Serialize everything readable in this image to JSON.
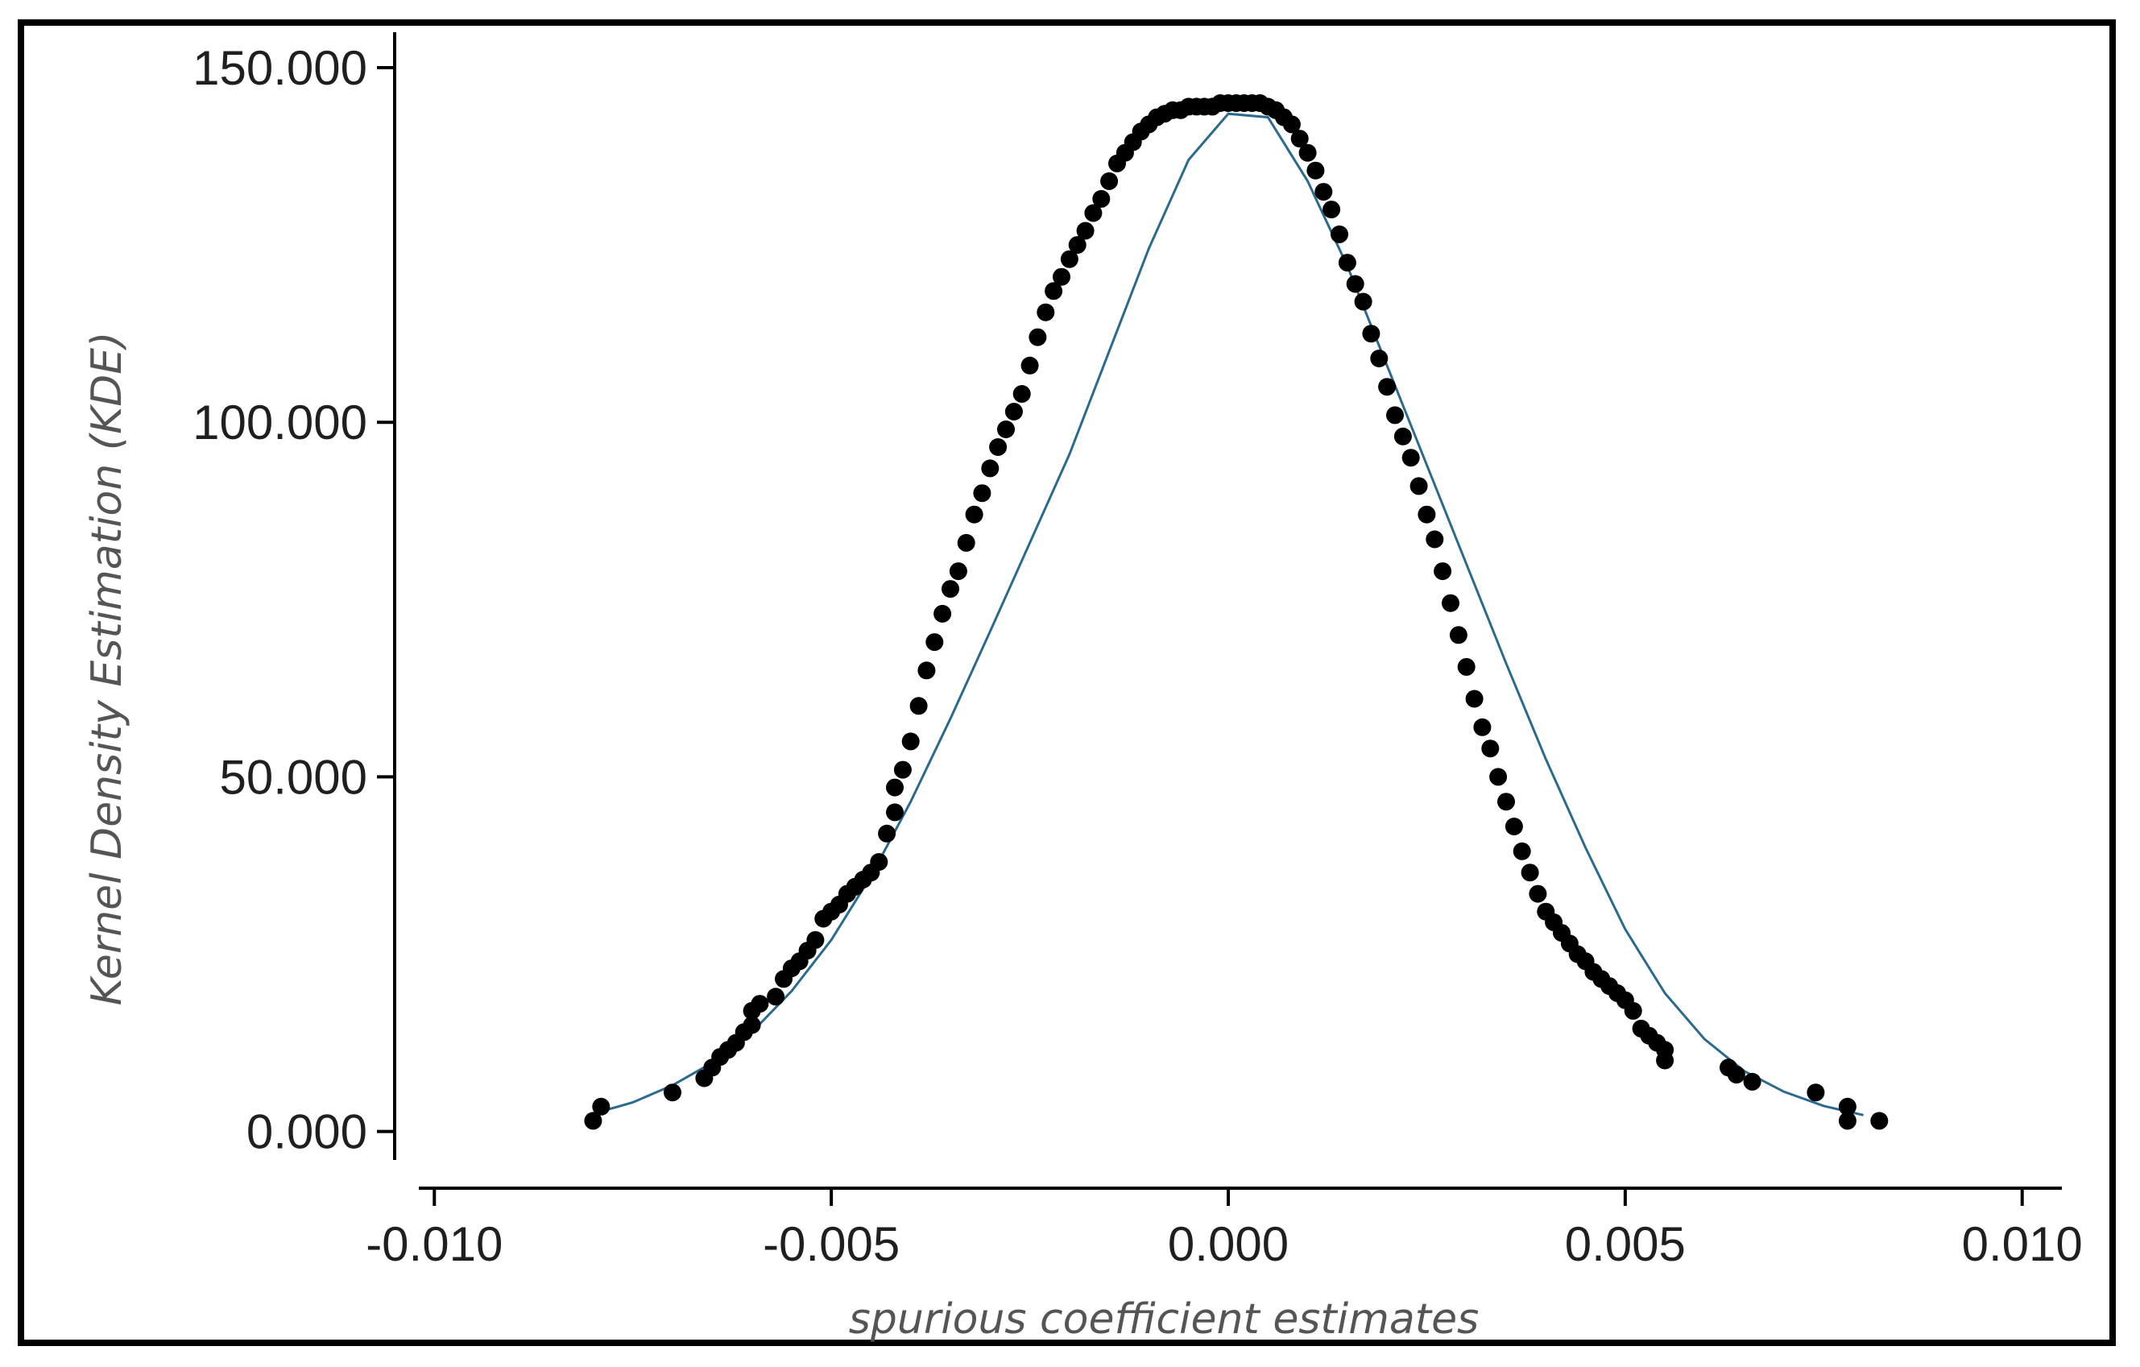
{
  "chart_data": {
    "type": "scatter",
    "xlabel": "spurious coefficient estimates",
    "ylabel": "Kernel Density Estimation (KDE)",
    "xlim": [
      -0.0105,
      0.0105
    ],
    "ylim": [
      -8,
      155
    ],
    "xticks": [
      -0.01,
      -0.005,
      0.0,
      0.005,
      0.01
    ],
    "xtick_labels": [
      "-0.010",
      "-0.005",
      "0.000",
      "0.005",
      "0.010"
    ],
    "yticks": [
      0,
      50,
      100,
      150
    ],
    "ytick_labels": [
      "0.000",
      "50.000",
      "100.000",
      "150.000"
    ],
    "grid": false,
    "legend": "none",
    "colors": {
      "points": "#000000",
      "fit_line": "#2b6a8f",
      "axes": "#000000"
    },
    "fitted_curve": {
      "x": [
        -0.008,
        -0.0075,
        -0.007,
        -0.0065,
        -0.006,
        -0.0055,
        -0.005,
        -0.0045,
        -0.004,
        -0.0035,
        -0.003,
        -0.0025,
        -0.002,
        -0.0015,
        -0.001,
        -0.0005,
        0.0,
        0.0005,
        0.001,
        0.0015,
        0.002,
        0.0025,
        0.003,
        0.0035,
        0.004,
        0.0045,
        0.005,
        0.0055,
        0.006,
        0.0065,
        0.007,
        0.0075,
        0.008
      ],
      "y": [
        2.5,
        4.1,
        6.5,
        9.7,
        14.0,
        19.8,
        27.0,
        36.0,
        46.5,
        58.2,
        70.5,
        83.0,
        95.5,
        110.0,
        124.5,
        137.0,
        143.5,
        143.0,
        134.0,
        122.0,
        108.0,
        94.0,
        80.0,
        66.0,
        52.5,
        40.0,
        28.5,
        19.5,
        13.0,
        8.5,
        5.6,
        3.6,
        2.3
      ]
    },
    "series": [
      {
        "x": [
          -0.008,
          -0.0079,
          -0.007,
          -0.0066,
          -0.0065,
          -0.0064,
          -0.0063,
          -0.0062,
          -0.0061,
          -0.006,
          -0.006,
          -0.0059,
          -0.0057,
          -0.0056,
          -0.0055,
          -0.0054,
          -0.0053,
          -0.0052,
          -0.0051,
          -0.005,
          -0.0049,
          -0.0048,
          -0.0047,
          -0.0046,
          -0.0045,
          -0.0044,
          -0.0043,
          -0.0042,
          -0.0042,
          -0.0041,
          -0.004,
          -0.0039,
          -0.0038,
          -0.0037,
          -0.0036,
          -0.0035,
          -0.0034,
          -0.0033,
          -0.0032,
          -0.0031,
          -0.003,
          -0.0029,
          -0.0028,
          -0.0027,
          -0.0026,
          -0.0025,
          -0.0024,
          -0.0023,
          -0.0022,
          -0.0021,
          -0.002,
          -0.0019,
          -0.0018,
          -0.0017,
          -0.0016,
          -0.0015,
          -0.0014,
          -0.0013,
          -0.0012,
          -0.0011,
          -0.001,
          -0.0009,
          -0.0008,
          -0.0007,
          -0.0006,
          -0.0005,
          -0.0004,
          -0.0003,
          -0.0002,
          -0.0001,
          0.0,
          0.0001,
          0.0002,
          0.0003,
          0.0004,
          0.0005,
          0.0006,
          0.0007,
          0.0008,
          0.0009,
          0.001,
          0.0011,
          0.0012,
          0.0013,
          0.0014,
          0.0015,
          0.0016,
          0.0017,
          0.0018,
          0.0019,
          0.002,
          0.0021,
          0.0022,
          0.0023,
          0.0024,
          0.0025,
          0.0026,
          0.0027,
          0.0028,
          0.0029,
          0.003,
          0.0031,
          0.0032,
          0.0033,
          0.0034,
          0.0035,
          0.0036,
          0.0037,
          0.0038,
          0.0039,
          0.004,
          0.0041,
          0.0042,
          0.0043,
          0.0044,
          0.0045,
          0.0046,
          0.0047,
          0.0048,
          0.0049,
          0.005,
          0.0051,
          0.0052,
          0.0053,
          0.0054,
          0.0055,
          0.0055,
          0.0063,
          0.0064,
          0.0066,
          0.0074,
          0.0078,
          0.0078,
          0.0082
        ],
        "y": [
          1.5,
          3.5,
          5.5,
          7.5,
          9.0,
          10.5,
          11.5,
          12.5,
          14.0,
          15.0,
          17.0,
          18.0,
          19.0,
          21.5,
          23.0,
          24.0,
          25.5,
          27.0,
          30.0,
          31.0,
          32.0,
          33.5,
          34.5,
          35.5,
          36.5,
          38.0,
          42.0,
          45.0,
          48.5,
          51.0,
          55.0,
          60.0,
          65.0,
          69.0,
          73.0,
          76.5,
          79.0,
          83.0,
          87.0,
          90.0,
          93.5,
          96.5,
          99.0,
          101.5,
          104.0,
          108.0,
          112.0,
          115.5,
          118.5,
          120.5,
          123.0,
          125.0,
          127.0,
          129.5,
          131.5,
          134.0,
          136.5,
          138.0,
          139.5,
          141.0,
          142.0,
          143.0,
          143.5,
          144.0,
          144.0,
          144.5,
          144.5,
          144.5,
          144.5,
          145.0,
          145.0,
          145.0,
          145.0,
          145.0,
          145.0,
          144.5,
          144.0,
          143.0,
          142.0,
          140.0,
          138.0,
          135.5,
          132.5,
          130.0,
          126.5,
          122.5,
          119.5,
          117.0,
          112.5,
          109.0,
          105.0,
          101.0,
          98.0,
          95.0,
          91.0,
          87.0,
          83.5,
          79.0,
          74.5,
          70.0,
          65.5,
          61.0,
          57.0,
          54.0,
          50.0,
          46.5,
          43.0,
          39.5,
          36.5,
          33.5,
          31.0,
          29.5,
          28.0,
          26.5,
          25.0,
          24.0,
          22.5,
          21.5,
          20.5,
          19.5,
          18.5,
          17.0,
          14.5,
          13.5,
          12.5,
          11.5,
          10.0,
          9.0,
          8.0,
          7.0,
          5.5,
          3.5,
          1.5,
          1.5
        ]
      }
    ]
  }
}
